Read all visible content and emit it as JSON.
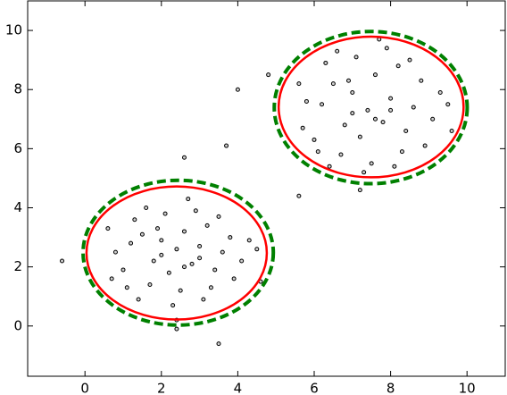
{
  "chart_data": {
    "type": "scatter",
    "x": [
      1.2,
      1.5,
      1.8,
      2.0,
      2.2,
      2.4,
      2.6,
      2.8,
      3.0,
      3.2,
      3.4,
      3.6,
      1.0,
      1.3,
      1.7,
      2.1,
      2.5,
      2.9,
      3.3,
      3.8,
      4.1,
      4.3,
      0.8,
      1.1,
      1.6,
      2.3,
      2.7,
      3.1,
      3.5,
      3.9,
      4.5,
      0.6,
      2.0,
      2.6,
      1.9,
      3.0,
      2.4,
      1.4,
      4.6,
      0.7,
      6.2,
      6.5,
      6.8,
      7.0,
      7.2,
      7.4,
      7.6,
      7.8,
      8.0,
      8.2,
      8.4,
      8.6,
      6.0,
      6.3,
      6.7,
      7.1,
      7.5,
      7.9,
      8.3,
      8.8,
      9.1,
      9.3,
      5.8,
      6.1,
      6.6,
      7.3,
      7.7,
      8.1,
      8.5,
      8.9,
      9.5,
      5.6,
      7.0,
      7.6,
      6.9,
      8.0,
      7.2,
      6.4,
      9.6,
      5.7,
      -0.6,
      3.5,
      4.0,
      3.7,
      2.6,
      5.6,
      4.8,
      2.4
    ],
    "values": [
      2.8,
      3.1,
      2.2,
      2.9,
      1.8,
      2.6,
      3.2,
      2.1,
      2.7,
      3.4,
      1.9,
      2.5,
      1.9,
      3.6,
      1.4,
      3.8,
      1.2,
      3.9,
      1.3,
      3.0,
      2.2,
      2.9,
      2.5,
      1.3,
      4.0,
      0.7,
      4.3,
      0.9,
      3.7,
      1.6,
      2.6,
      3.3,
      2.4,
      2.0,
      3.3,
      2.3,
      0.2,
      0.9,
      1.5,
      1.6,
      7.5,
      8.2,
      6.8,
      7.9,
      6.4,
      7.3,
      8.5,
      6.9,
      7.7,
      8.8,
      6.6,
      7.4,
      6.3,
      8.9,
      5.8,
      9.1,
      5.5,
      9.4,
      5.9,
      8.3,
      7.0,
      7.9,
      7.6,
      5.9,
      9.3,
      5.2,
      9.7,
      5.4,
      9.0,
      6.1,
      7.5,
      8.2,
      7.2,
      7.0,
      8.3,
      7.3,
      4.6,
      5.4,
      6.6,
      6.7,
      2.2,
      -0.6,
      8.0,
      6.1,
      5.7,
      4.4,
      8.5,
      -0.1
    ],
    "marker_color": "#d0d0d0",
    "marker_edge": "#000000",
    "ellipses": [
      {
        "cx": 2.4,
        "cy": 2.47,
        "width": 4.72,
        "height": 4.5,
        "color": "#ff0000",
        "style": "solid"
      },
      {
        "cx": 2.44,
        "cy": 2.48,
        "width": 4.98,
        "height": 4.9,
        "color": "#008000",
        "style": "dashed"
      },
      {
        "cx": 7.49,
        "cy": 7.41,
        "width": 4.84,
        "height": 4.76,
        "color": "#ff0000",
        "style": "solid"
      },
      {
        "cx": 7.48,
        "cy": 7.39,
        "width": 5.05,
        "height": 5.15,
        "color": "#008000",
        "style": "dashed"
      }
    ],
    "xlim": [
      -1.5,
      11
    ],
    "xticks": [
      0,
      2,
      4,
      6,
      8,
      10
    ],
    "ylim": [
      -1.7,
      11
    ],
    "yticks": [
      0,
      2,
      4,
      6,
      8,
      10
    ],
    "grid": false
  }
}
